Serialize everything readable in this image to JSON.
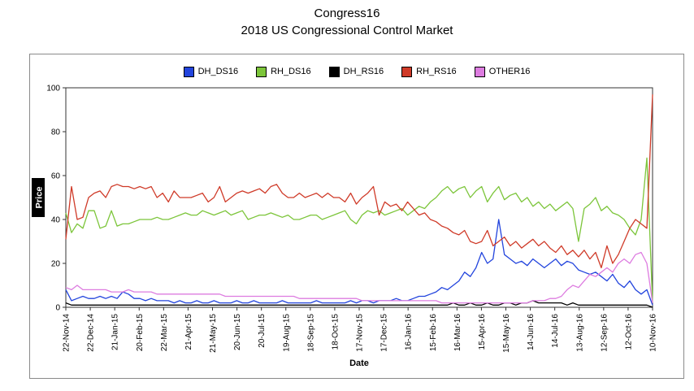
{
  "title": "Congress16",
  "subtitle": "2018 US Congressional Control Market",
  "chart_data": {
    "type": "line",
    "title": "Congress16 - 2018 US Congressional Control Market",
    "xlabel": "Date",
    "ylabel": "Price",
    "ylim": [
      0,
      100
    ],
    "yticks": [
      0,
      20,
      40,
      60,
      80,
      100
    ],
    "grid": false,
    "legend_position": "top",
    "x_tick_labels": [
      "22-Nov-14",
      "22-Dec-14",
      "21-Jan-15",
      "20-Feb-15",
      "22-Mar-15",
      "21-Apr-15",
      "21-May-15",
      "20-Jun-15",
      "20-Jul-15",
      "19-Aug-15",
      "18-Sep-15",
      "18-Oct-15",
      "17-Nov-15",
      "17-Dec-15",
      "16-Jan-16",
      "15-Feb-16",
      "16-Mar-16",
      "15-Apr-16",
      "15-May-16",
      "14-Jun-16",
      "14-Jul-16",
      "13-Aug-16",
      "12-Sep-16",
      "12-Oct-16",
      "10-Nov-16"
    ],
    "series": [
      {
        "name": "DH_DS16",
        "color": "#2244dd",
        "values": [
          8,
          3,
          4,
          5,
          4,
          4,
          5,
          4,
          5,
          4,
          7,
          6,
          4,
          4,
          3,
          4,
          3,
          3,
          3,
          2,
          3,
          2,
          2,
          3,
          2,
          2,
          3,
          2,
          2,
          2,
          3,
          2,
          2,
          3,
          2,
          2,
          2,
          2,
          3,
          2,
          2,
          2,
          2,
          2,
          3,
          2,
          2,
          2,
          2,
          2,
          3,
          2,
          3,
          3,
          2,
          3,
          3,
          3,
          4,
          3,
          3,
          4,
          5,
          5,
          6,
          7,
          9,
          8,
          10,
          12,
          16,
          14,
          18,
          25,
          20,
          22,
          40,
          24,
          22,
          20,
          21,
          19,
          22,
          20,
          18,
          20,
          22,
          19,
          21,
          20,
          17,
          16,
          15,
          16,
          14,
          12,
          15,
          11,
          9,
          12,
          8,
          6,
          8,
          1
        ]
      },
      {
        "name": "RH_DS16",
        "color": "#7cc53a",
        "values": [
          43,
          34,
          38,
          36,
          44,
          44,
          36,
          37,
          44,
          37,
          38,
          38,
          39,
          40,
          40,
          40,
          41,
          40,
          40,
          41,
          42,
          43,
          42,
          42,
          44,
          43,
          42,
          43,
          44,
          42,
          43,
          44,
          40,
          41,
          42,
          42,
          43,
          42,
          41,
          42,
          40,
          40,
          41,
          42,
          42,
          40,
          41,
          42,
          43,
          44,
          40,
          38,
          42,
          44,
          43,
          44,
          42,
          43,
          44,
          45,
          42,
          44,
          46,
          45,
          48,
          50,
          53,
          55,
          52,
          54,
          55,
          50,
          53,
          55,
          48,
          52,
          55,
          49,
          51,
          52,
          48,
          50,
          46,
          48,
          45,
          47,
          44,
          46,
          48,
          45,
          30,
          45,
          47,
          50,
          44,
          46,
          43,
          42,
          40,
          36,
          33,
          40,
          68,
          2
        ]
      },
      {
        "name": "DH_RS16",
        "color": "#000000",
        "values": [
          2,
          1,
          1,
          1,
          1,
          1,
          1,
          1,
          1,
          1,
          1,
          1,
          1,
          1,
          1,
          1,
          1,
          1,
          1,
          1,
          1,
          1,
          1,
          1,
          1,
          1,
          1,
          1,
          1,
          1,
          1,
          1,
          1,
          1,
          1,
          1,
          1,
          1,
          1,
          1,
          1,
          1,
          1,
          1,
          1,
          1,
          1,
          1,
          1,
          1,
          1,
          1,
          1,
          1,
          1,
          1,
          1,
          1,
          1,
          1,
          1,
          1,
          1,
          1,
          1,
          1,
          1,
          1,
          2,
          1,
          1,
          2,
          1,
          1,
          2,
          1,
          1,
          2,
          2,
          1,
          2,
          2,
          3,
          2,
          2,
          2,
          2,
          2,
          1,
          2,
          1,
          1,
          1,
          1,
          1,
          1,
          1,
          1,
          1,
          1,
          1,
          1,
          1,
          0
        ]
      },
      {
        "name": "RH_RS16",
        "color": "#cf3a28",
        "values": [
          31,
          55,
          40,
          41,
          50,
          52,
          53,
          50,
          55,
          56,
          55,
          55,
          54,
          55,
          54,
          55,
          50,
          52,
          48,
          53,
          50,
          50,
          50,
          51,
          52,
          48,
          50,
          55,
          48,
          50,
          52,
          53,
          52,
          53,
          54,
          52,
          55,
          56,
          52,
          50,
          50,
          52,
          50,
          51,
          52,
          50,
          52,
          50,
          50,
          48,
          52,
          47,
          50,
          52,
          55,
          42,
          48,
          46,
          47,
          44,
          48,
          45,
          42,
          43,
          40,
          39,
          37,
          36,
          34,
          33,
          35,
          30,
          29,
          30,
          35,
          28,
          30,
          32,
          28,
          30,
          27,
          29,
          31,
          28,
          30,
          27,
          25,
          28,
          24,
          26,
          23,
          26,
          22,
          25,
          18,
          28,
          20,
          24,
          30,
          36,
          40,
          38,
          36,
          97
        ]
      },
      {
        "name": "OTHER16",
        "color": "#dd7ce0",
        "values": [
          9,
          8,
          10,
          8,
          8,
          8,
          8,
          8,
          7,
          7,
          7,
          8,
          7,
          7,
          7,
          7,
          6,
          6,
          6,
          6,
          6,
          6,
          6,
          6,
          6,
          6,
          6,
          6,
          5,
          5,
          5,
          5,
          5,
          5,
          5,
          5,
          5,
          5,
          5,
          5,
          5,
          4,
          4,
          4,
          4,
          4,
          4,
          4,
          4,
          4,
          4,
          4,
          3,
          3,
          3,
          3,
          3,
          3,
          3,
          3,
          3,
          3,
          3,
          3,
          3,
          3,
          2,
          2,
          2,
          2,
          2,
          2,
          2,
          2,
          2,
          2,
          2,
          2,
          2,
          2,
          2,
          2,
          3,
          3,
          3,
          4,
          4,
          5,
          8,
          10,
          9,
          12,
          15,
          14,
          16,
          18,
          16,
          20,
          22,
          20,
          24,
          25,
          20,
          2
        ]
      }
    ]
  }
}
